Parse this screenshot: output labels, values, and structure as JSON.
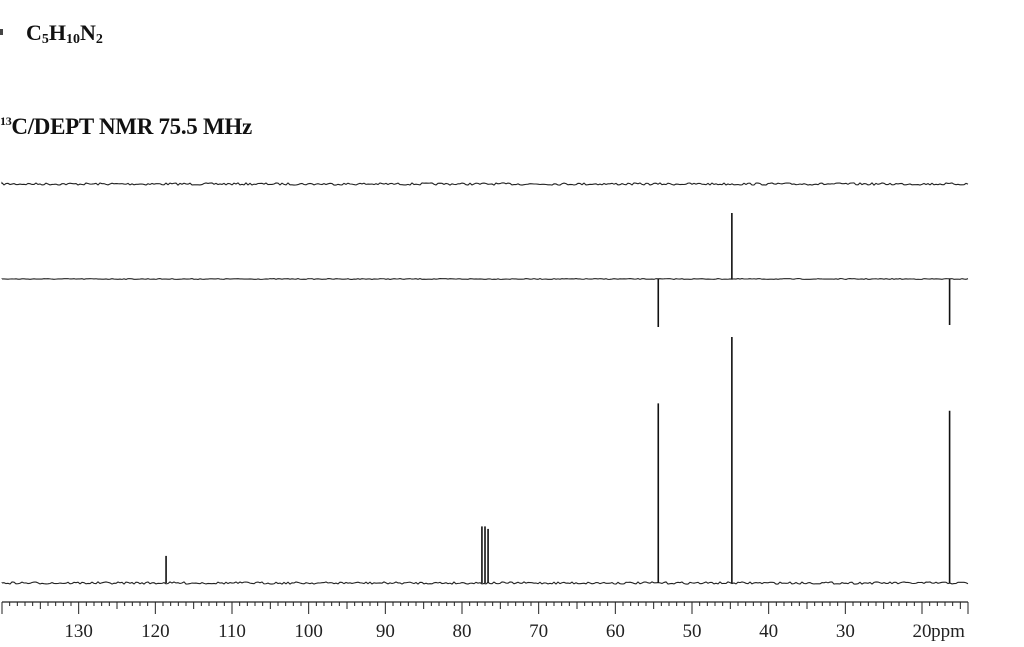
{
  "formula": {
    "element1": "C",
    "sub1": "5",
    "element2": "H",
    "sub2": "10",
    "element3": "N",
    "sub3": "2"
  },
  "spectrum_title": {
    "iso": "13",
    "text": "C/DEPT NMR 75.5 MHz"
  },
  "chart_data": {
    "type": "line",
    "title": "13C/DEPT NMR 75.5 MHz",
    "xlabel": "ppm",
    "xlim": [
      14,
      140
    ],
    "x_reversed": true,
    "ticks": [
      130,
      120,
      110,
      100,
      90,
      80,
      70,
      60,
      50,
      40,
      30,
      20
    ],
    "tick_labels": [
      "130",
      "120",
      "110",
      "100",
      "90",
      "80",
      "70",
      "60",
      "50",
      "40",
      "30",
      "20"
    ],
    "unit_label": "ppm",
    "grid": false,
    "series": [
      {
        "peaks": []
      },
      {
        "peaks": [
          {
            "ppm": 44.8,
            "intensity": 0.66
          },
          {
            "ppm": 54.4,
            "intensity": -0.48
          },
          {
            "ppm": 16.4,
            "intensity": -0.46
          }
        ]
      },
      {
        "peaks": [
          {
            "ppm": 118.6,
            "intensity": 0.11
          },
          {
            "ppm": 77.4,
            "intensity": 0.23
          },
          {
            "ppm": 77.0,
            "intensity": 0.23
          },
          {
            "ppm": 76.6,
            "intensity": 0.22
          },
          {
            "ppm": 54.4,
            "intensity": 0.73
          },
          {
            "ppm": 44.8,
            "intensity": 1.0
          },
          {
            "ppm": 16.4,
            "intensity": 0.7
          }
        ]
      }
    ]
  }
}
